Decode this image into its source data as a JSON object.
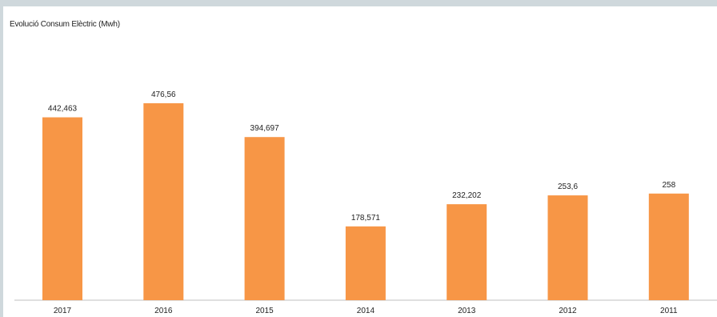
{
  "chart_data": {
    "type": "bar",
    "title": "Evolució Consum Elèctric (Mwh)",
    "categories": [
      "2017",
      "2016",
      "2015",
      "2014",
      "2013",
      "2012",
      "2011"
    ],
    "values": [
      442.463,
      476.56,
      394.697,
      178.571,
      232.202,
      253.6,
      258
    ],
    "data_labels": [
      "442,463",
      "476,56",
      "394,697",
      "178,571",
      "232,202",
      "253,6",
      "258"
    ],
    "ylim": [
      0,
      560
    ],
    "grid": false,
    "bar_color": "#f79646"
  }
}
